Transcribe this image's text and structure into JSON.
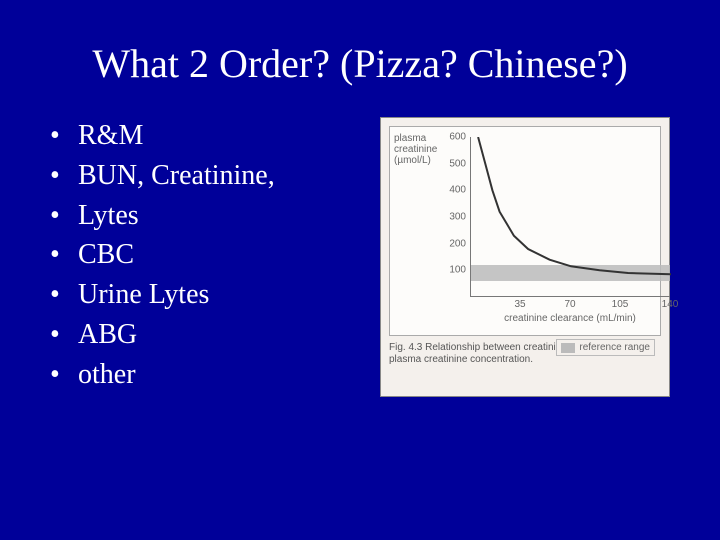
{
  "title": "What 2 Order? (Pizza? Chinese?)",
  "bullets": [
    "R&M",
    "BUN, Creatinine,",
    "Lytes",
    "CBC",
    "Urine Lytes",
    "ABG",
    "other"
  ],
  "figure": {
    "type": "line",
    "y_label_line1": "plasma",
    "y_label_line2": "creatinine",
    "y_label_line3": "(µmol/L)",
    "x_label": "creatinine clearance (mL/min)",
    "legend_label": "reference range",
    "caption": "Fig. 4.3 Relationship between creatinine clearance and plasma creatinine concentration.",
    "ylim": [
      0,
      600
    ],
    "yticks": [
      100,
      200,
      300,
      400,
      500,
      600
    ],
    "xlim": [
      0,
      140
    ],
    "xticks": [
      35,
      70,
      105,
      140
    ],
    "ref_band_y": [
      60,
      120
    ],
    "curve": [
      {
        "x": 5,
        "y": 600
      },
      {
        "x": 10,
        "y": 500
      },
      {
        "x": 15,
        "y": 400
      },
      {
        "x": 20,
        "y": 320
      },
      {
        "x": 30,
        "y": 230
      },
      {
        "x": 40,
        "y": 180
      },
      {
        "x": 55,
        "y": 140
      },
      {
        "x": 70,
        "y": 115
      },
      {
        "x": 90,
        "y": 100
      },
      {
        "x": 110,
        "y": 90
      },
      {
        "x": 140,
        "y": 85
      }
    ],
    "colors": {
      "slide_bg": "#000099",
      "figure_bg": "#f4f0ec",
      "plot_bg": "#fdfcfa",
      "axis": "#777777",
      "curve": "#333333",
      "ref_band": "#bbbbbb",
      "text": "#666666"
    },
    "line_width": 2,
    "title_fontsize": 40,
    "bullet_fontsize": 28,
    "figure_fontsize": 10
  }
}
